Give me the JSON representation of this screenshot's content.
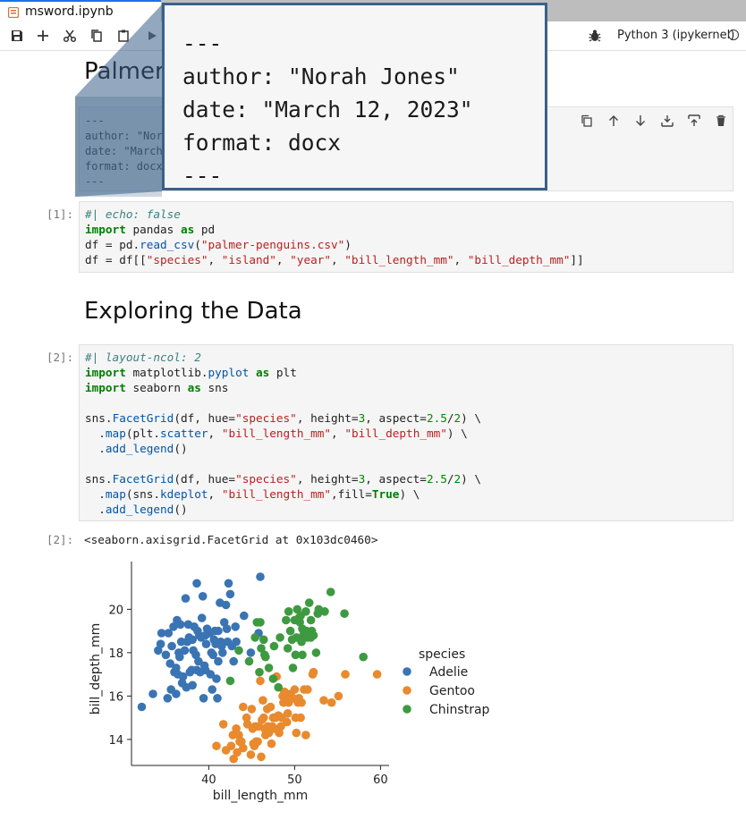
{
  "tab": {
    "title": "msword.ipynb"
  },
  "kernel": {
    "name": "Python 3 (ipykernel)"
  },
  "toolbar": {
    "icons": [
      "save-icon",
      "add-icon",
      "cut-icon",
      "copy-icon",
      "paste-icon",
      "run-icon",
      "debug-icon"
    ]
  },
  "notebook": {
    "heading1": "Palmer Penguins",
    "raw_cell": {
      "lines": [
        "---",
        "author: \"Norah Jones\"",
        "date: \"March 12, 2023\"",
        "format: docx",
        "---"
      ]
    },
    "cell1": {
      "prompt": "[1]:",
      "code": [
        "#| echo: false",
        "import pandas as pd",
        "df = pd.read_csv(\"palmer-penguins.csv\")",
        "df = df[[\"species\", \"island\", \"year\", \"bill_length_mm\", \"bill_depth_mm\"]]"
      ]
    },
    "heading2": "Exploring the Data",
    "cell2": {
      "prompt": "[2]:",
      "code": [
        "#| layout-ncol: 2",
        "import matplotlib.pyplot as plt",
        "import seaborn as sns",
        "",
        "sns.FacetGrid(df, hue=\"species\", height=3, aspect=2.5/2) \\",
        "  .map(plt.scatter, \"bill_length_mm\", \"bill_depth_mm\") \\",
        "  .add_legend()",
        "",
        "sns.FacetGrid(df, hue=\"species\", height=3, aspect=2.5/2) \\",
        "  .map(sns.kdeplot, \"bill_length_mm\",fill=True) \\",
        "  .add_legend()"
      ]
    },
    "output": {
      "prompt": "[2]:",
      "text": "<seaborn.axisgrid.FacetGrid at 0x103dc0460>"
    }
  },
  "zoom_callout": {
    "lines": [
      "---",
      "author: \"Norah Jones\"",
      "date: \"March 12, 2023\"",
      "format: docx",
      "---"
    ]
  },
  "chart_data": {
    "type": "scatter",
    "title": "",
    "xlabel": "bill_length_mm",
    "ylabel": "bill_depth_mm",
    "xlim": [
      31,
      61
    ],
    "ylim": [
      12.8,
      22.2
    ],
    "xticks": [
      40,
      50,
      60
    ],
    "yticks": [
      14,
      16,
      18,
      20
    ],
    "grid": false,
    "legend": {
      "title": "species",
      "placement": "right"
    },
    "series": [
      {
        "name": "Adelie",
        "color": "#3a74b3",
        "points": [
          [
            32.2,
            15.5
          ],
          [
            33.5,
            16.1
          ],
          [
            34.1,
            18.1
          ],
          [
            34.5,
            18.9
          ],
          [
            34.4,
            18.4
          ],
          [
            35.0,
            17.9
          ],
          [
            35.3,
            18.9
          ],
          [
            35.5,
            17.5
          ],
          [
            35.6,
            16.3
          ],
          [
            35.7,
            18.3
          ],
          [
            35.9,
            19.2
          ],
          [
            36.0,
            17.1
          ],
          [
            36.2,
            16.1
          ],
          [
            36.2,
            17.3
          ],
          [
            36.4,
            17.0
          ],
          [
            36.5,
            18.0
          ],
          [
            36.6,
            17.8
          ],
          [
            36.7,
            19.3
          ],
          [
            36.8,
            18.5
          ],
          [
            36.9,
            16.6
          ],
          [
            37.0,
            16.9
          ],
          [
            37.2,
            18.1
          ],
          [
            37.3,
            20.5
          ],
          [
            37.5,
            18.5
          ],
          [
            37.6,
            19.3
          ],
          [
            37.7,
            18.7
          ],
          [
            37.8,
            17.1
          ],
          [
            37.9,
            18.6
          ],
          [
            38.0,
            17.2
          ],
          [
            38.1,
            18.6
          ],
          [
            38.1,
            16.5
          ],
          [
            38.2,
            18.1
          ],
          [
            38.3,
            19.2
          ],
          [
            38.5,
            17.9
          ],
          [
            38.6,
            21.2
          ],
          [
            38.6,
            17.2
          ],
          [
            38.7,
            19.0
          ],
          [
            38.8,
            17.6
          ],
          [
            38.9,
            18.8
          ],
          [
            39.0,
            17.1
          ],
          [
            39.1,
            18.7
          ],
          [
            39.2,
            19.6
          ],
          [
            39.3,
            20.6
          ],
          [
            39.5,
            17.4
          ],
          [
            39.6,
            18.8
          ],
          [
            39.6,
            17.2
          ],
          [
            39.7,
            18.4
          ],
          [
            39.8,
            19.1
          ],
          [
            40.1,
            18.9
          ],
          [
            40.2,
            17.0
          ],
          [
            40.3,
            18.0
          ],
          [
            40.5,
            17.9
          ],
          [
            40.6,
            18.6
          ],
          [
            40.7,
            19.0
          ],
          [
            40.8,
            18.4
          ],
          [
            40.9,
            16.8
          ],
          [
            41.1,
            19.0
          ],
          [
            41.1,
            17.6
          ],
          [
            41.3,
            20.3
          ],
          [
            41.4,
            18.5
          ],
          [
            41.5,
            18.3
          ],
          [
            41.6,
            18.0
          ],
          [
            41.8,
            19.4
          ],
          [
            42.0,
            20.2
          ],
          [
            42.1,
            19.1
          ],
          [
            42.2,
            18.5
          ],
          [
            42.3,
            21.2
          ],
          [
            42.5,
            20.7
          ],
          [
            42.7,
            18.3
          ],
          [
            42.9,
            17.6
          ],
          [
            43.1,
            19.2
          ],
          [
            43.2,
            18.5
          ],
          [
            44.1,
            19.7
          ],
          [
            44.9,
            18.0
          ],
          [
            45.8,
            18.9
          ],
          [
            46.0,
            21.5
          ],
          [
            36.3,
            19.5
          ],
          [
            37.4,
            16.4
          ],
          [
            39.4,
            15.9
          ],
          [
            40.4,
            16.3
          ],
          [
            41.0,
            15.9
          ],
          [
            35.2,
            15.9
          ]
        ]
      },
      {
        "name": "Gentoo",
        "color": "#e88a2d",
        "points": [
          [
            40.9,
            13.7
          ],
          [
            41.7,
            14.7
          ],
          [
            42.0,
            13.5
          ],
          [
            42.6,
            13.7
          ],
          [
            42.8,
            14.2
          ],
          [
            42.9,
            13.1
          ],
          [
            43.2,
            14.5
          ],
          [
            43.3,
            13.4
          ],
          [
            43.5,
            14.2
          ],
          [
            43.6,
            13.9
          ],
          [
            43.8,
            13.9
          ],
          [
            44.0,
            13.6
          ],
          [
            44.4,
            15.0
          ],
          [
            44.5,
            14.7
          ],
          [
            44.9,
            13.3
          ],
          [
            45.0,
            15.4
          ],
          [
            45.1,
            14.5
          ],
          [
            45.2,
            13.8
          ],
          [
            45.3,
            13.7
          ],
          [
            45.4,
            14.6
          ],
          [
            45.5,
            13.9
          ],
          [
            45.7,
            13.9
          ],
          [
            45.8,
            14.6
          ],
          [
            46.1,
            13.2
          ],
          [
            46.2,
            14.9
          ],
          [
            46.3,
            15.8
          ],
          [
            46.4,
            15.0
          ],
          [
            46.5,
            14.5
          ],
          [
            46.6,
            14.2
          ],
          [
            46.8,
            15.4
          ],
          [
            46.9,
            14.6
          ],
          [
            47.0,
            14.3
          ],
          [
            47.2,
            15.5
          ],
          [
            47.3,
            13.8
          ],
          [
            47.4,
            14.6
          ],
          [
            47.5,
            15.0
          ],
          [
            47.6,
            14.5
          ],
          [
            47.7,
            15.0
          ],
          [
            47.8,
            15.0
          ],
          [
            48.1,
            15.1
          ],
          [
            48.2,
            14.3
          ],
          [
            48.4,
            14.6
          ],
          [
            48.5,
            15.0
          ],
          [
            48.6,
            16.0
          ],
          [
            48.7,
            15.7
          ],
          [
            48.8,
            16.2
          ],
          [
            49.0,
            16.1
          ],
          [
            49.1,
            14.8
          ],
          [
            49.2,
            15.2
          ],
          [
            49.3,
            15.7
          ],
          [
            49.4,
            15.8
          ],
          [
            49.5,
            16.1
          ],
          [
            49.6,
            16.0
          ],
          [
            49.8,
            15.9
          ],
          [
            50.0,
            16.3
          ],
          [
            50.1,
            15.0
          ],
          [
            50.2,
            14.3
          ],
          [
            50.4,
            15.7
          ],
          [
            50.5,
            15.9
          ],
          [
            50.7,
            15.0
          ],
          [
            50.8,
            15.7
          ],
          [
            51.1,
            16.3
          ],
          [
            51.3,
            14.2
          ],
          [
            51.5,
            16.3
          ],
          [
            52.1,
            17.0
          ],
          [
            52.2,
            17.1
          ],
          [
            53.4,
            15.8
          ],
          [
            54.3,
            15.7
          ],
          [
            55.1,
            16.0
          ],
          [
            55.9,
            17.0
          ],
          [
            59.6,
            17.0
          ],
          [
            44.0,
            15.5
          ],
          [
            47.9,
            16.9
          ],
          [
            46.0,
            16.7
          ]
        ]
      },
      {
        "name": "Chinstrap",
        "color": "#3e9a41",
        "points": [
          [
            46.5,
            17.9
          ],
          [
            46.0,
            19.4
          ],
          [
            46.4,
            18.6
          ],
          [
            45.6,
            19.4
          ],
          [
            47.0,
            17.3
          ],
          [
            47.5,
            16.8
          ],
          [
            48.1,
            16.4
          ],
          [
            49.0,
            19.5
          ],
          [
            49.2,
            18.2
          ],
          [
            49.5,
            19.0
          ],
          [
            49.7,
            18.6
          ],
          [
            50.0,
            19.5
          ],
          [
            50.1,
            17.9
          ],
          [
            50.3,
            20.0
          ],
          [
            50.5,
            19.6
          ],
          [
            50.6,
            19.4
          ],
          [
            50.7,
            19.7
          ],
          [
            50.8,
            18.5
          ],
          [
            50.9,
            17.9
          ],
          [
            51.0,
            18.8
          ],
          [
            51.3,
            19.9
          ],
          [
            51.4,
            19.0
          ],
          [
            51.5,
            18.7
          ],
          [
            51.7,
            20.3
          ],
          [
            51.9,
            19.5
          ],
          [
            52.0,
            19.0
          ],
          [
            52.2,
            18.8
          ],
          [
            52.5,
            18.0
          ],
          [
            52.7,
            19.8
          ],
          [
            52.8,
            20.0
          ],
          [
            53.5,
            19.9
          ],
          [
            54.2,
            20.8
          ],
          [
            55.8,
            19.8
          ],
          [
            58.0,
            17.8
          ],
          [
            46.1,
            18.2
          ],
          [
            42.5,
            16.7
          ],
          [
            43.5,
            18.1
          ],
          [
            44.7,
            17.6
          ],
          [
            45.4,
            18.7
          ],
          [
            45.9,
            17.1
          ],
          [
            46.6,
            17.8
          ],
          [
            47.6,
            18.3
          ],
          [
            48.3,
            18.7
          ],
          [
            49.3,
            19.9
          ],
          [
            49.8,
            17.3
          ],
          [
            50.2,
            18.7
          ],
          [
            50.9,
            19.1
          ],
          [
            51.9,
            18.7
          ]
        ]
      }
    ]
  }
}
